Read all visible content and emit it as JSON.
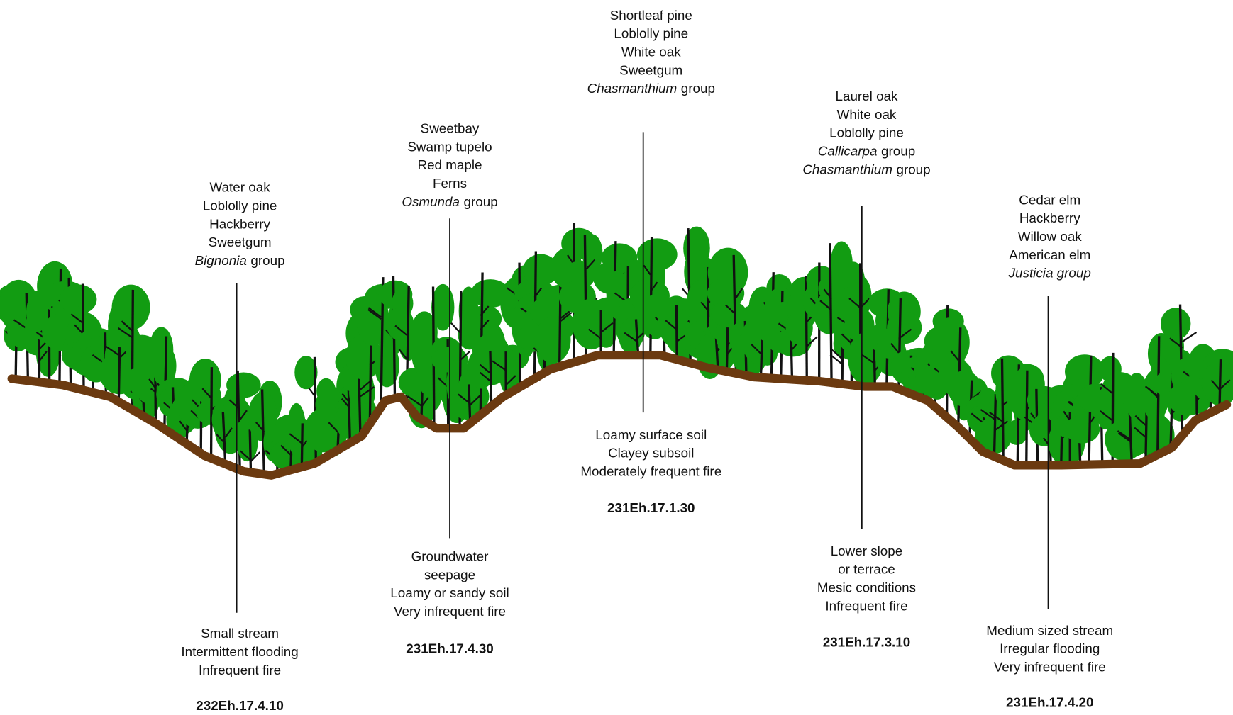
{
  "zones": [
    {
      "species": [
        "Water oak",
        "Loblolly pine",
        "Hackberry",
        "Sweetgum",
        {
          "italic": "Bignonia",
          "text": "group"
        }
      ],
      "conditions": [
        "Small stream",
        "Intermittent flooding",
        "Infrequent fire"
      ],
      "code": "232Eh.17.4.10"
    },
    {
      "species": [
        "Sweetbay",
        "Swamp tupelo",
        "Red maple",
        "Ferns",
        {
          "italic": "Osmunda",
          "text": "group"
        }
      ],
      "conditions": [
        "Groundwater",
        "seepage",
        "Loamy or sandy soil",
        "Very infrequent fire"
      ],
      "code": "231Eh.17.4.30"
    },
    {
      "species": [
        "Shortleaf pine",
        "Loblolly pine",
        "White oak",
        "Sweetgum",
        {
          "italic": "Chasmanthium",
          "text": "group"
        }
      ],
      "conditions": [
        "Loamy surface soil",
        "Clayey subsoil",
        "Moderately frequent fire"
      ],
      "code": "231Eh.17.1.30"
    },
    {
      "species": [
        "Laurel oak",
        "White oak",
        "Loblolly pine",
        {
          "italic": "Callicarpa",
          "text": "group"
        },
        {
          "italic": "Chasmanthium",
          "text": "group"
        }
      ],
      "conditions": [
        "Lower slope",
        "or terrace",
        "Mesic conditions",
        "Infrequent fire"
      ],
      "code": "231Eh.17.3.10"
    },
    {
      "species": [
        "Cedar elm",
        "Hackberry",
        "Willow oak",
        "American elm",
        {
          "italic": "Justicia group"
        }
      ],
      "conditions": [
        "Medium sized stream",
        "Irregular flooding",
        "Very infrequent fire"
      ],
      "code": "231Eh.17.4.20"
    }
  ]
}
